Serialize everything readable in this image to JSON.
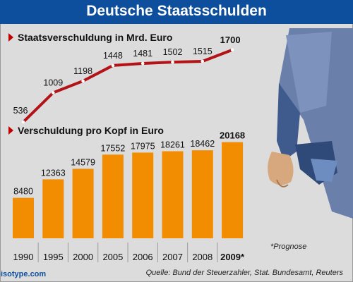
{
  "header": {
    "title": "Deutsche Staatsschulden"
  },
  "footer": {
    "source": "Quelle: Bund der Steuerzahler, Stat. Bundesamt, Reuters",
    "logo": "isotype.com",
    "note": "*Prognose"
  },
  "colors": {
    "title_bar": "#0d4f9c",
    "line": "#b31217",
    "bar": "#f28c00",
    "background": "#dcdcdc"
  },
  "chart_data": [
    {
      "type": "line",
      "title": "Staatsverschuldung in Mrd. Euro",
      "categories": [
        "1990",
        "1995",
        "2000",
        "2005",
        "2006",
        "2007",
        "2008",
        "2009*"
      ],
      "values": [
        536,
        1009,
        1198,
        1448,
        1481,
        1502,
        1515,
        1700
      ],
      "labels": [
        "536",
        "1009",
        "1198",
        "1448",
        "1481",
        "1502",
        "1515",
        "1700"
      ],
      "ylim": [
        400,
        1800
      ]
    },
    {
      "type": "bar",
      "title": "Verschuldung pro Kopf in Euro",
      "categories": [
        "1990",
        "1995",
        "2000",
        "2005",
        "2006",
        "2007",
        "2008",
        "2009*"
      ],
      "values": [
        8480,
        12363,
        14579,
        17552,
        17975,
        18261,
        18462,
        20168
      ],
      "labels": [
        "8480",
        "12363",
        "14579",
        "17552",
        "17975",
        "18261",
        "18462",
        "20168"
      ],
      "ylim": [
        0,
        21000
      ]
    }
  ]
}
